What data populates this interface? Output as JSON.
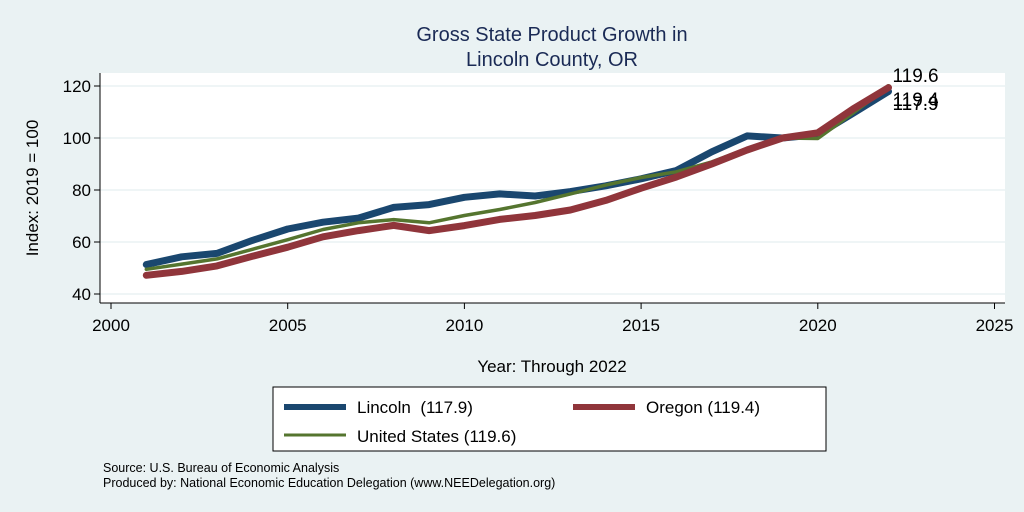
{
  "chart_data": {
    "type": "line",
    "title": [
      "Gross State Product Growth in",
      "Lincoln County, OR"
    ],
    "xlabel": "Year: Through 2022",
    "ylabel": "Index: 2019 = 100",
    "xlim": [
      2000,
      2025
    ],
    "ylim": [
      38,
      123
    ],
    "xticks": [
      2000,
      2005,
      2010,
      2015,
      2020,
      2025
    ],
    "yticks": [
      40,
      60,
      80,
      100,
      120
    ],
    "grid": true,
    "legend_placement": "bottom",
    "x": [
      2001,
      2002,
      2003,
      2004,
      2005,
      2006,
      2007,
      2008,
      2009,
      2010,
      2011,
      2012,
      2013,
      2014,
      2015,
      2016,
      2017,
      2018,
      2019,
      2020,
      2021,
      2022
    ],
    "series": [
      {
        "name": "Lincoln",
        "legend_label": "Lincoln  (117.9)",
        "color": "#1a476f",
        "end_label": "117.9",
        "values": [
          51.3,
          54.3,
          55.6,
          60.6,
          65.0,
          67.6,
          69.2,
          73.3,
          74.4,
          77.2,
          78.5,
          77.7,
          79.4,
          81.6,
          84.3,
          87.5,
          94.7,
          100.8,
          100.0,
          101.3,
          109.5,
          117.9
        ]
      },
      {
        "name": "Oregon",
        "legend_label": "Oregon (119.4)",
        "color": "#90353b",
        "end_label": "119.4",
        "values": [
          47.2,
          48.7,
          50.8,
          54.5,
          58.0,
          62.0,
          64.4,
          66.4,
          64.4,
          66.3,
          68.7,
          70.2,
          72.3,
          76.0,
          80.7,
          85.0,
          90.0,
          95.4,
          100.0,
          102.0,
          111.2,
          119.4
        ]
      },
      {
        "name": "United States",
        "legend_label": "United States (119.6)",
        "color": "#55752f",
        "end_label": "119.6",
        "values": [
          49.5,
          51.5,
          53.5,
          57.2,
          60.9,
          64.8,
          67.4,
          68.6,
          67.4,
          70.2,
          72.5,
          75.2,
          78.5,
          81.9,
          84.8,
          87.0,
          90.8,
          95.9,
          100.0,
          99.8,
          109.6,
          119.6
        ]
      }
    ],
    "notes": [
      "Source: U.S. Bureau of Economic Analysis",
      "Produced by: National Economic Education Delegation (www.NEEDelegation.org)"
    ]
  }
}
